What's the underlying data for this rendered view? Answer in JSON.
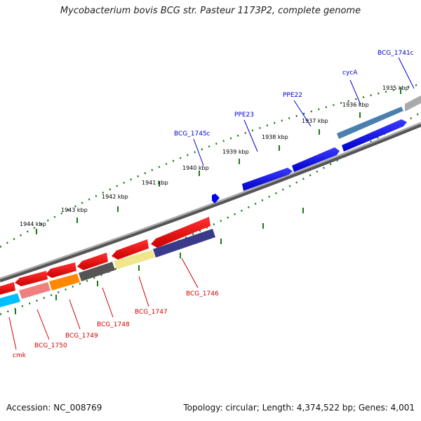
{
  "title": "Mycobacterium bovis BCG str. Pasteur 1173P2, complete genome",
  "footer": {
    "accession": "Accession: NC_008769",
    "summary": "Topology: circular; Length: 4,374,522 bp; Genes: 4,001"
  },
  "colors": {
    "forward_label": "#0000cc",
    "reverse_label": "#cc0000",
    "backbone": "#888888",
    "tick": "#1a7a1a",
    "ruler_label": "#000000"
  },
  "ruler_labels": [
    "1935 kbp",
    "1936 kbp",
    "1937 kbp",
    "1938 kbp",
    "1939 kbp",
    "1940 kbp",
    "1941 kbp",
    "1942 kbp",
    "1943 kbp",
    "1944 kbp"
  ],
  "forward_gene_labels": [
    "BCG_1741c",
    "cycA",
    "PPE22",
    "PPE23",
    "BCG_1745c"
  ],
  "reverse_gene_labels": [
    "BCG_1746",
    "BCG_1747",
    "BCG_1748",
    "BCG_1749",
    "BCG_1750",
    "cmk"
  ]
}
